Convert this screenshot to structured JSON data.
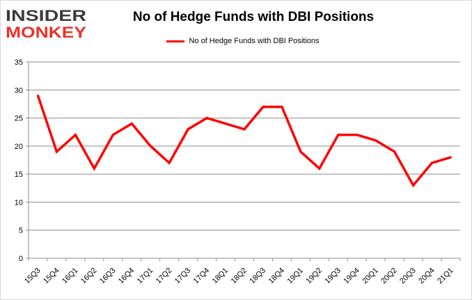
{
  "logo": {
    "line1": "INSIDER",
    "line2": "MONKEY"
  },
  "colors": {
    "series": "#ff0000",
    "logo_dark": "#3a3a3a",
    "logo_red": "#e8332b",
    "grid": "#8c8c8c"
  },
  "chart_data": {
    "type": "line",
    "title": "No of Hedge Funds with DBI Positions",
    "xlabel": "",
    "ylabel": "",
    "ylim": [
      0,
      35
    ],
    "yticks": [
      0,
      5,
      10,
      15,
      20,
      25,
      30,
      35
    ],
    "grid": true,
    "legend_placement": "top",
    "categories": [
      "15Q3",
      "15Q4",
      "16Q1",
      "16Q2",
      "16Q3",
      "16Q4",
      "17Q1",
      "17Q2",
      "17Q3",
      "17Q4",
      "18Q1",
      "18Q2",
      "18Q3",
      "18Q4",
      "19Q1",
      "19Q2",
      "19Q3",
      "19Q4",
      "20Q1",
      "20Q2",
      "20Q3",
      "20Q4",
      "21Q1"
    ],
    "series": [
      {
        "name": "No of Hedge Funds with DBI Positions",
        "values": [
          29,
          19,
          22,
          16,
          22,
          24,
          20,
          17,
          23,
          25,
          24,
          23,
          27,
          27,
          19,
          16,
          22,
          22,
          21,
          19,
          13,
          17,
          18
        ]
      }
    ]
  }
}
